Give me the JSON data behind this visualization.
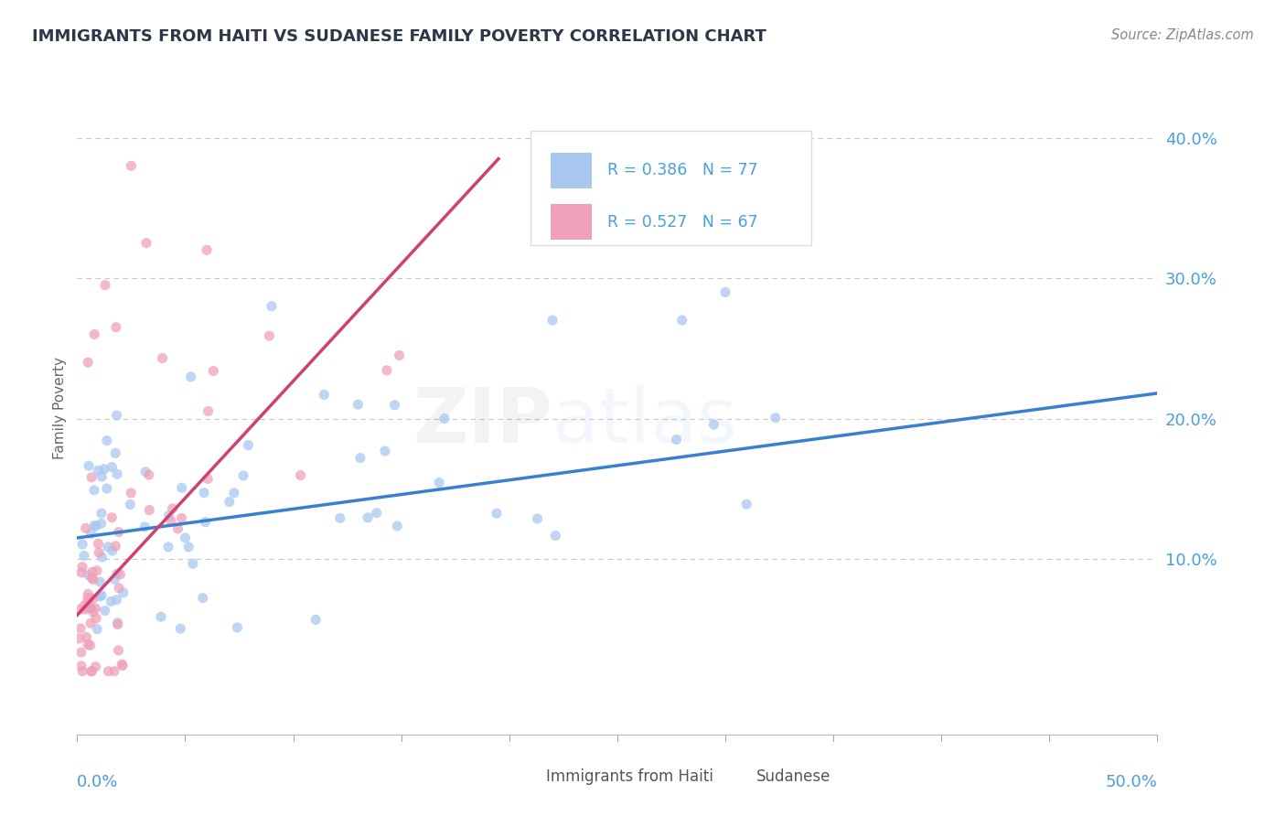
{
  "title": "IMMIGRANTS FROM HAITI VS SUDANESE FAMILY POVERTY CORRELATION CHART",
  "source": "Source: ZipAtlas.com",
  "ylabel": "Family Poverty",
  "xlim": [
    0.0,
    0.5
  ],
  "ylim": [
    -0.025,
    0.44
  ],
  "haiti_R": 0.386,
  "haiti_N": 77,
  "sudanese_R": 0.527,
  "sudanese_N": 67,
  "haiti_color": "#a8c8f0",
  "sudanese_color": "#f0a0b8",
  "haiti_line_color": "#3a80d0",
  "sudanese_line_color": "#d04070",
  "axis_label_color": "#4a9eda",
  "title_color": "#2d3748",
  "grid_color": "#c8c8c8",
  "background_color": "#ffffff",
  "legend_border_color": "#dddddd",
  "watermark_zip_color": "#555555",
  "watermark_atlas_color": "#5599cc",
  "haiti_trend_x0": 0.0,
  "haiti_trend_y0": 0.115,
  "haiti_trend_x1": 0.5,
  "haiti_trend_y1": 0.218,
  "sud_trend_x0": 0.0,
  "sud_trend_y0": 0.06,
  "sud_trend_x1": 0.195,
  "sud_trend_y1": 0.385
}
